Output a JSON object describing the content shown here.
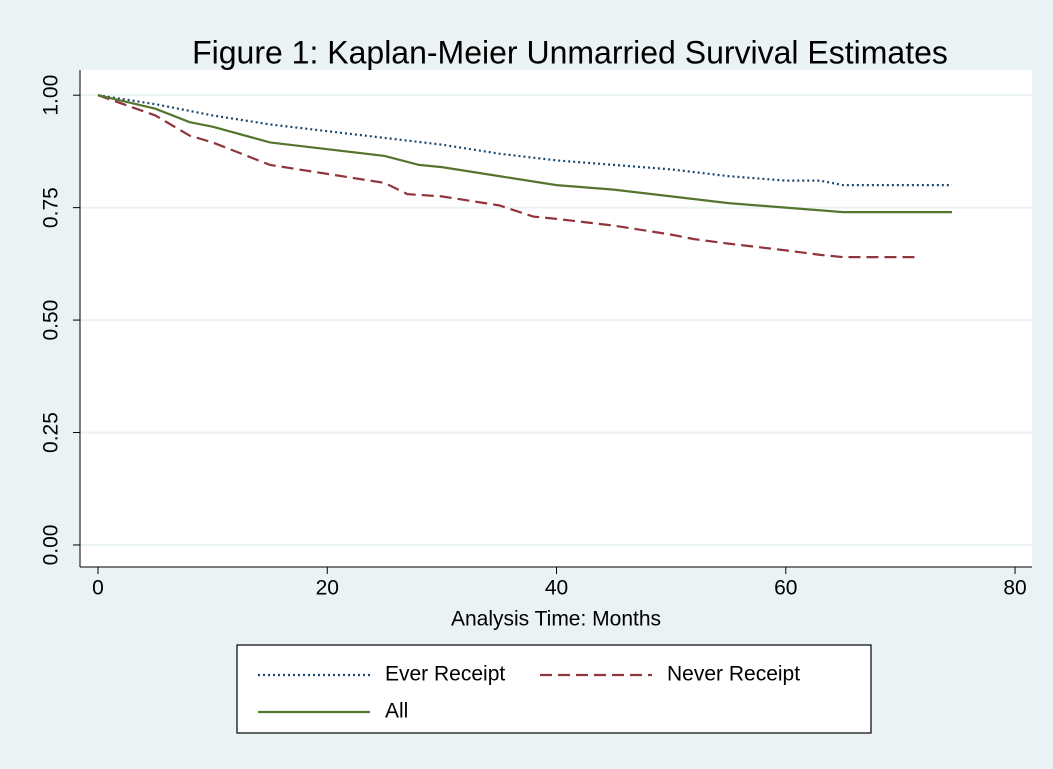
{
  "chart_data": {
    "type": "line",
    "title": "Figure 1:  Kaplan-Meier Unmarried Survival Estimates",
    "x_label": "Analysis Time: Months",
    "xlim": [
      -1.57,
      81.48
    ],
    "ylim": [
      -0.049,
      1.056
    ],
    "xticks": [
      0,
      20,
      40,
      60,
      80
    ],
    "yticks": [
      {
        "value": 0,
        "label": "0.00"
      },
      {
        "value": 0.25,
        "label": "0.25"
      },
      {
        "value": 0.5,
        "label": "0.50"
      },
      {
        "value": 0.75,
        "label": "0.75"
      },
      {
        "value": 1,
        "label": "1.00"
      }
    ],
    "grid": true,
    "legend": "bottom",
    "series": [
      {
        "name": "Ever Receipt",
        "color": "#1a476f",
        "dash": "dotted",
        "x": [
          0,
          5,
          10,
          15,
          20,
          25,
          30,
          35,
          40,
          45,
          50,
          55,
          60,
          63,
          65,
          74.5
        ],
        "values": [
          1.0,
          0.98,
          0.955,
          0.935,
          0.92,
          0.905,
          0.89,
          0.87,
          0.855,
          0.845,
          0.835,
          0.82,
          0.81,
          0.81,
          0.8,
          0.8
        ]
      },
      {
        "name": "Never Receipt",
        "color": "#90353b",
        "dash": "dashed",
        "x": [
          0,
          5,
          8,
          10,
          15,
          20,
          25,
          27,
          30,
          35,
          38,
          40,
          45,
          50,
          52,
          55,
          60,
          63,
          65,
          71.5
        ],
        "values": [
          1.0,
          0.955,
          0.91,
          0.895,
          0.845,
          0.825,
          0.805,
          0.78,
          0.775,
          0.755,
          0.73,
          0.725,
          0.71,
          0.69,
          0.68,
          0.67,
          0.655,
          0.645,
          0.64,
          0.64
        ]
      },
      {
        "name": "All",
        "color": "#55752f",
        "dash": "solid",
        "x": [
          0,
          5,
          8,
          10,
          15,
          20,
          25,
          28,
          30,
          35,
          40,
          45,
          50,
          55,
          60,
          65,
          74.5
        ],
        "values": [
          1.0,
          0.97,
          0.94,
          0.93,
          0.895,
          0.88,
          0.865,
          0.845,
          0.84,
          0.82,
          0.8,
          0.79,
          0.775,
          0.76,
          0.75,
          0.74,
          0.74
        ]
      }
    ]
  }
}
